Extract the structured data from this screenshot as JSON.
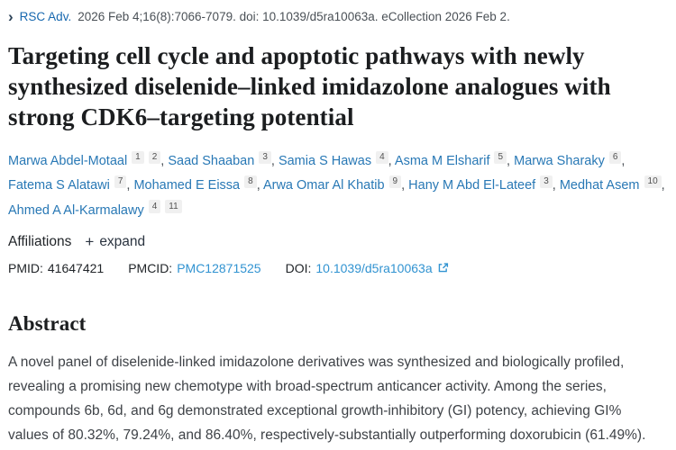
{
  "citation": {
    "chevron_glyph": "›",
    "journal_link": "RSC Adv.",
    "text": "2026 Feb 4;16(8):7066-7079. doi: 10.1039/d5ra10063a. eCollection 2026 Feb 2."
  },
  "title": "Targeting cell cycle and apoptotic pathways with newly synthesized diselenide–linked imidazolone analogues with strong CDK6–targeting potential",
  "authors": [
    {
      "name": "Marwa Abdel-Motaal",
      "sups": [
        "1",
        "2"
      ]
    },
    {
      "name": "Saad Shaaban",
      "sups": [
        "3"
      ]
    },
    {
      "name": "Samia S Hawas",
      "sups": [
        "4"
      ]
    },
    {
      "name": "Asma M Elsharif",
      "sups": [
        "5"
      ]
    },
    {
      "name": "Marwa Sharaky",
      "sups": [
        "6"
      ]
    },
    {
      "name": "Fatema S Alatawi",
      "sups": [
        "7"
      ]
    },
    {
      "name": "Mohamed E Eissa",
      "sups": [
        "8"
      ]
    },
    {
      "name": "Arwa Omar Al Khatib",
      "sups": [
        "9"
      ]
    },
    {
      "name": "Hany M Abd El-Lateef",
      "sups": [
        "3"
      ]
    },
    {
      "name": "Medhat Asem",
      "sups": [
        "10"
      ]
    },
    {
      "name": "Ahmed A Al-Karmalawy",
      "sups": [
        "4",
        "11"
      ]
    }
  ],
  "affiliations": {
    "label": "Affiliations",
    "plus_icon": "+",
    "expand_label": "expand"
  },
  "identifiers": {
    "pmid_label": "PMID:",
    "pmid_value": "41647421",
    "pmcid_label": "PMCID:",
    "pmcid_value": "PMC12871525",
    "doi_label": "DOI:",
    "doi_value": "10.1039/d5ra10063a",
    "external_link_icon": "external-link-icon"
  },
  "abstract": {
    "heading": "Abstract",
    "lines": [
      "A novel panel of diselenide-linked imidazolone derivatives was synthesized and biologically profiled,",
      "revealing a promising new chemotype with broad-spectrum anticancer activity. Among the series,",
      "compounds 6b, 6d, and 6g demonstrated exceptional growth-inhibitory (GI) potency, achieving GI%",
      "values of 80.32%, 79.24%, and 86.40%, respectively-substantially outperforming doxorubicin (61.49%)."
    ]
  },
  "colors": {
    "journal_link": "#1768af",
    "author_link": "#2878b5",
    "id_link": "#3193d1",
    "title_text": "#1b1d1f",
    "body_text": "#3e4247",
    "citation_text": "#4a5056",
    "chip_bg": "#f0f0f0"
  }
}
